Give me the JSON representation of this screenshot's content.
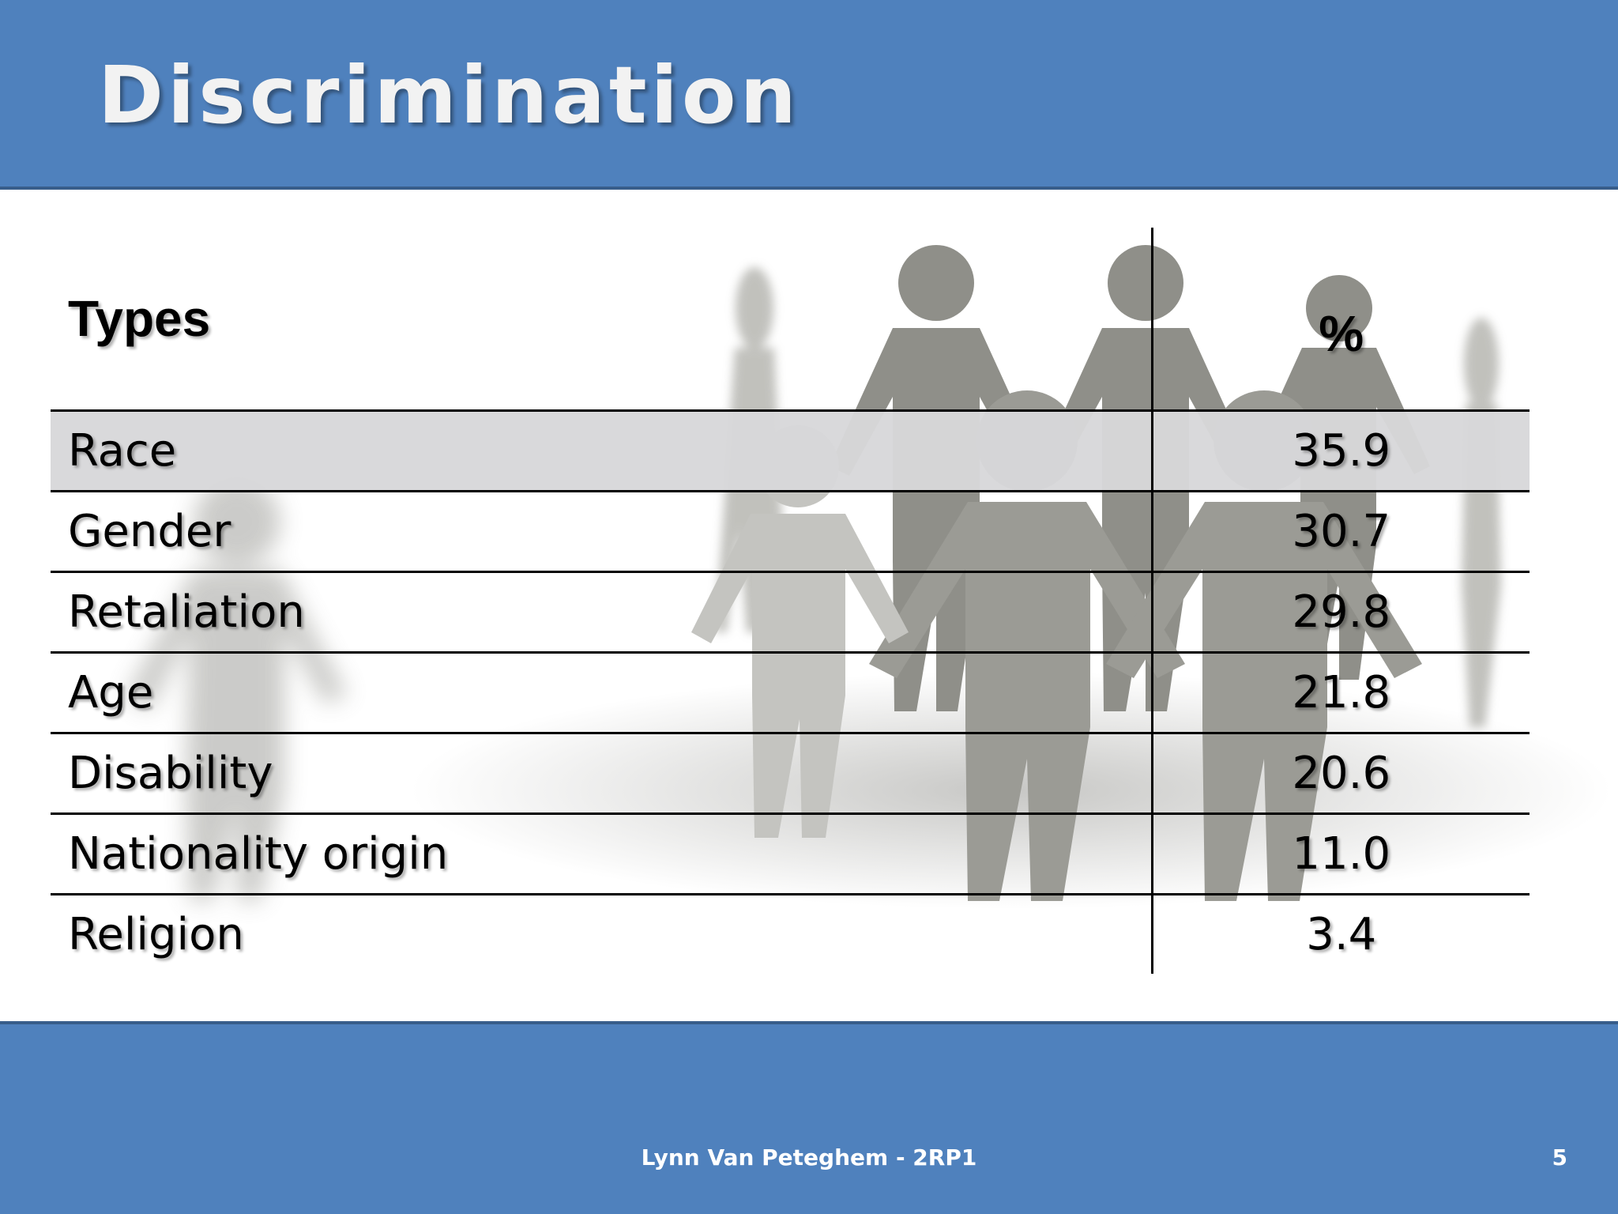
{
  "slide": {
    "title": "Discrimination",
    "footer": "Lynn Van Peteghem - 2RP1",
    "page_number": "5"
  },
  "table": {
    "headers": {
      "types": "Types",
      "percent": "%"
    },
    "rows": [
      {
        "type": "Race",
        "percent": "35.9"
      },
      {
        "type": "Gender",
        "percent": "30.7"
      },
      {
        "type": "Retaliation",
        "percent": "29.8"
      },
      {
        "type": "Age",
        "percent": "21.8"
      },
      {
        "type": "Disability",
        "percent": "20.6"
      },
      {
        "type": "Nationality origin",
        "percent": "11.0"
      },
      {
        "type": "Religion",
        "percent": "3.4"
      }
    ]
  },
  "colors": {
    "header_bar": "#4f81bd",
    "header_border": "#385d8a",
    "highlight_row": "#d7d7da"
  },
  "icons": [
    "paper-people-chain-image"
  ]
}
